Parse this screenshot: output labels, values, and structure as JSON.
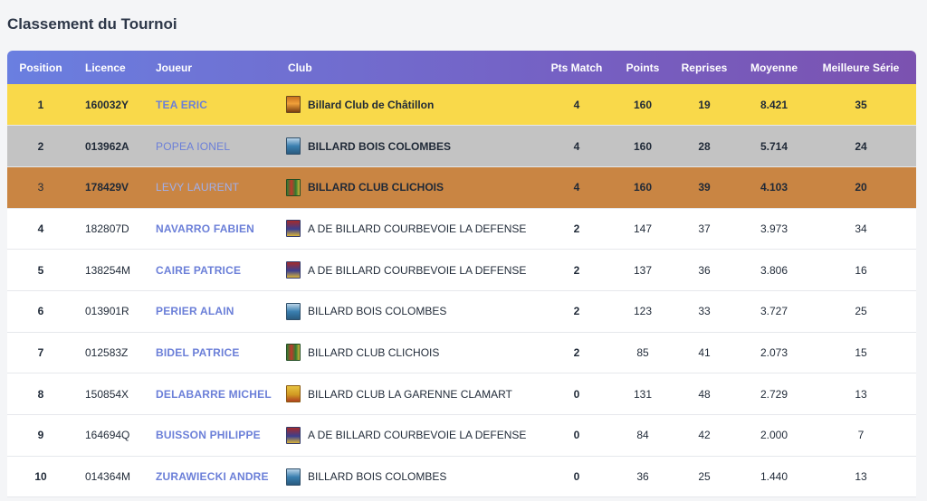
{
  "page_title": "Classement du Tournoi",
  "columns": {
    "position": "Position",
    "licence": "Licence",
    "joueur": "Joueur",
    "club": "Club",
    "pts_match": "Pts Match",
    "points": "Points",
    "reprises": "Reprises",
    "moyenne": "Moyenne",
    "meilleure_serie": "Meilleure Série"
  },
  "colors": {
    "header_gradient_start": "#6a7fe0",
    "header_gradient_end": "#7b52b0",
    "gold": "#f9d94a",
    "silver": "#c3c3c3",
    "bronze": "#c98543",
    "player_link": "#6b7fd8"
  },
  "rows": [
    {
      "position": "1",
      "licence": "160032Y",
      "joueur": "TEA ERIC",
      "club": "Billard Club de Châtillon",
      "club_icon": "chatillon-crest-icon",
      "pts_match": "4",
      "points": "160",
      "reprises": "19",
      "moyenne": "8.421",
      "meilleure_serie": "35"
    },
    {
      "position": "2",
      "licence": "013962A",
      "joueur": "POPEA IONEL",
      "club": "BILLARD BOIS COLOMBES",
      "club_icon": "bois-colombes-crest-icon",
      "pts_match": "4",
      "points": "160",
      "reprises": "28",
      "moyenne": "5.714",
      "meilleure_serie": "24"
    },
    {
      "position": "3",
      "licence": "178429V",
      "joueur": "LEVY LAURENT",
      "club": "BILLARD CLUB CLICHOIS",
      "club_icon": "clichy-crest-icon",
      "pts_match": "4",
      "points": "160",
      "reprises": "39",
      "moyenne": "4.103",
      "meilleure_serie": "20"
    },
    {
      "position": "4",
      "licence": "182807D",
      "joueur": "NAVARRO FABIEN",
      "club": "A DE BILLARD COURBEVOIE LA DEFENSE",
      "club_icon": "courbevoie-crest-icon",
      "pts_match": "2",
      "points": "147",
      "reprises": "37",
      "moyenne": "3.973",
      "meilleure_serie": "34"
    },
    {
      "position": "5",
      "licence": "138254M",
      "joueur": "CAIRE PATRICE",
      "club": "A DE BILLARD COURBEVOIE LA DEFENSE",
      "club_icon": "courbevoie-crest-icon",
      "pts_match": "2",
      "points": "137",
      "reprises": "36",
      "moyenne": "3.806",
      "meilleure_serie": "16"
    },
    {
      "position": "6",
      "licence": "013901R",
      "joueur": "PERIER ALAIN",
      "club": "BILLARD BOIS COLOMBES",
      "club_icon": "bois-colombes-crest-icon",
      "pts_match": "2",
      "points": "123",
      "reprises": "33",
      "moyenne": "3.727",
      "meilleure_serie": "25"
    },
    {
      "position": "7",
      "licence": "012583Z",
      "joueur": "BIDEL PATRICE",
      "club": "BILLARD CLUB CLICHOIS",
      "club_icon": "clichy-crest-icon",
      "pts_match": "2",
      "points": "85",
      "reprises": "41",
      "moyenne": "2.073",
      "meilleure_serie": "15"
    },
    {
      "position": "8",
      "licence": "150854X",
      "joueur": "DELABARRE MICHEL",
      "club": "BILLARD CLUB LA GARENNE CLAMART",
      "club_icon": "garenne-clamart-crest-icon",
      "pts_match": "0",
      "points": "131",
      "reprises": "48",
      "moyenne": "2.729",
      "meilleure_serie": "13"
    },
    {
      "position": "9",
      "licence": "164694Q",
      "joueur": "BUISSON PHILIPPE",
      "club": "A DE BILLARD COURBEVOIE LA DEFENSE",
      "club_icon": "courbevoie-crest-icon",
      "pts_match": "0",
      "points": "84",
      "reprises": "42",
      "moyenne": "2.000",
      "meilleure_serie": "7"
    },
    {
      "position": "10",
      "licence": "014364M",
      "joueur": "ZURAWIECKI ANDRE",
      "club": "BILLARD BOIS COLOMBES",
      "club_icon": "bois-colombes-crest-icon",
      "pts_match": "0",
      "points": "36",
      "reprises": "25",
      "moyenne": "1.440",
      "meilleure_serie": "13"
    }
  ]
}
